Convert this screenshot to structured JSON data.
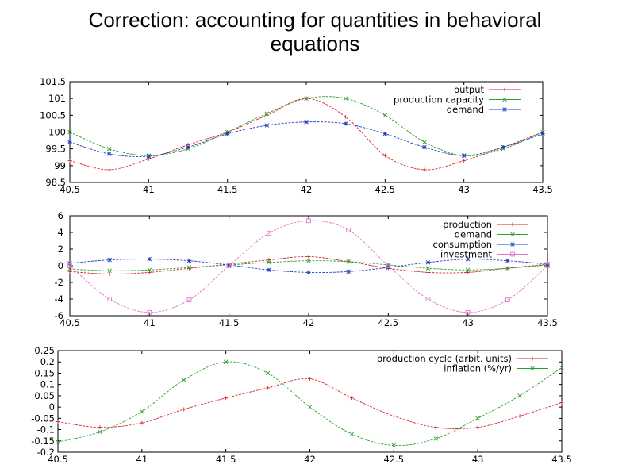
{
  "slide": {
    "title_line1": "Correction: accounting for quantities in behavioral",
    "title_line2": "equations"
  },
  "chart_data": [
    {
      "type": "line",
      "xlim": [
        40.5,
        43.5
      ],
      "ylim": [
        98.5,
        101.5
      ],
      "xticks": [
        "40.5",
        "41",
        "41.5",
        "42",
        "42.5",
        "43",
        "43.5"
      ],
      "yticks": [
        "101.5",
        "101",
        "100.5",
        "100",
        "99.5",
        "99",
        "98.5"
      ],
      "legend_position": "top-right",
      "grid": false,
      "series": [
        {
          "name": "output",
          "color": "#d62728",
          "marker": "plus",
          "x": [
            40.5,
            40.75,
            41.0,
            41.25,
            41.5,
            41.75,
            42.0,
            42.25,
            42.5,
            42.75,
            43.0,
            43.25,
            43.5
          ],
          "y": [
            99.15,
            98.88,
            99.2,
            99.62,
            100.0,
            100.5,
            101.0,
            100.45,
            99.3,
            98.88,
            99.15,
            99.55,
            100.0
          ]
        },
        {
          "name": "production capacity",
          "color": "#2ca02c",
          "marker": "x",
          "x": [
            40.5,
            40.75,
            41.0,
            41.25,
            41.5,
            41.75,
            42.0,
            42.25,
            42.5,
            42.75,
            43.0,
            43.25,
            43.5
          ],
          "y": [
            100.0,
            99.5,
            99.3,
            99.5,
            100.0,
            100.55,
            101.0,
            101.0,
            100.5,
            99.7,
            99.3,
            99.5,
            100.0
          ]
        },
        {
          "name": "demand",
          "color": "#1f3fbf",
          "marker": "star",
          "x": [
            40.5,
            40.75,
            41.0,
            41.25,
            41.5,
            41.75,
            42.0,
            42.25,
            42.5,
            42.75,
            43.0,
            43.25,
            43.5
          ],
          "y": [
            99.7,
            99.35,
            99.28,
            99.55,
            99.95,
            100.2,
            100.3,
            100.25,
            99.95,
            99.55,
            99.3,
            99.55,
            99.95
          ]
        }
      ]
    },
    {
      "type": "line",
      "xlim": [
        40.5,
        43.5
      ],
      "ylim": [
        -6,
        6
      ],
      "xticks": [
        "40.5",
        "41",
        "41.5",
        "42",
        "42.5",
        "43",
        "43.5"
      ],
      "yticks": [
        "6",
        "4",
        "2",
        "0",
        "-2",
        "-4",
        "-6"
      ],
      "legend_position": "top-right",
      "grid": false,
      "series": [
        {
          "name": "production",
          "color": "#d62728",
          "marker": "plus",
          "x": [
            40.5,
            40.75,
            41.0,
            41.25,
            41.5,
            41.75,
            42.0,
            42.25,
            42.5,
            42.75,
            43.0,
            43.25,
            43.5
          ],
          "y": [
            -0.7,
            -1.0,
            -0.8,
            -0.3,
            0.2,
            0.7,
            1.1,
            0.5,
            -0.3,
            -0.8,
            -0.8,
            -0.3,
            0.2
          ]
        },
        {
          "name": "demand",
          "color": "#2ca02c",
          "marker": "x",
          "x": [
            40.5,
            40.75,
            41.0,
            41.25,
            41.5,
            41.75,
            42.0,
            42.25,
            42.5,
            42.75,
            43.0,
            43.25,
            43.5
          ],
          "y": [
            -0.4,
            -0.6,
            -0.5,
            -0.2,
            0.1,
            0.4,
            0.6,
            0.5,
            0.1,
            -0.3,
            -0.5,
            -0.3,
            0.1
          ]
        },
        {
          "name": "consumption",
          "color": "#1f3fbf",
          "marker": "star",
          "x": [
            40.5,
            40.75,
            41.0,
            41.25,
            41.5,
            41.75,
            42.0,
            42.25,
            42.5,
            42.75,
            43.0,
            43.25,
            43.5
          ],
          "y": [
            0.3,
            0.7,
            0.8,
            0.6,
            0.1,
            -0.5,
            -0.8,
            -0.7,
            -0.2,
            0.4,
            0.8,
            0.6,
            0.2
          ]
        },
        {
          "name": "investment",
          "color": "#e377c2",
          "marker": "square",
          "x": [
            40.5,
            40.75,
            41.0,
            41.25,
            41.5,
            41.75,
            42.0,
            42.25,
            42.5,
            42.75,
            43.0,
            43.25,
            43.5
          ],
          "y": [
            0.0,
            -4.0,
            -5.6,
            -4.1,
            0.0,
            3.9,
            5.4,
            4.3,
            0.0,
            -4.0,
            -5.6,
            -4.1,
            0.0
          ]
        }
      ]
    },
    {
      "type": "line",
      "xlim": [
        40.5,
        43.5
      ],
      "ylim": [
        -0.2,
        0.25
      ],
      "xticks": [
        "40.5",
        "41",
        "41.5",
        "42",
        "42.5",
        "43",
        "43.5"
      ],
      "yticks": [
        "0.25",
        "0.2",
        "0.15",
        "0.1",
        "0.05",
        "0",
        "-0.05",
        "-0.1",
        "-0.15",
        "-0.2"
      ],
      "legend_position": "top-right",
      "grid": false,
      "series": [
        {
          "name": "production cycle (arbit. units)",
          "color": "#d62728",
          "marker": "plus",
          "x": [
            40.5,
            40.75,
            41.0,
            41.25,
            41.5,
            41.75,
            42.0,
            42.25,
            42.5,
            42.75,
            43.0,
            43.25,
            43.5
          ],
          "y": [
            -0.065,
            -0.09,
            -0.07,
            -0.01,
            0.04,
            0.085,
            0.125,
            0.04,
            -0.04,
            -0.09,
            -0.09,
            -0.04,
            0.02
          ]
        },
        {
          "name": "inflation (%/yr)",
          "color": "#2ca02c",
          "marker": "x",
          "x": [
            40.5,
            40.75,
            41.0,
            41.25,
            41.5,
            41.75,
            42.0,
            42.25,
            42.5,
            42.75,
            43.0,
            43.25,
            43.5
          ],
          "y": [
            -0.155,
            -0.11,
            -0.02,
            0.12,
            0.2,
            0.15,
            0.0,
            -0.12,
            -0.17,
            -0.14,
            -0.05,
            0.05,
            0.175
          ]
        }
      ]
    }
  ]
}
